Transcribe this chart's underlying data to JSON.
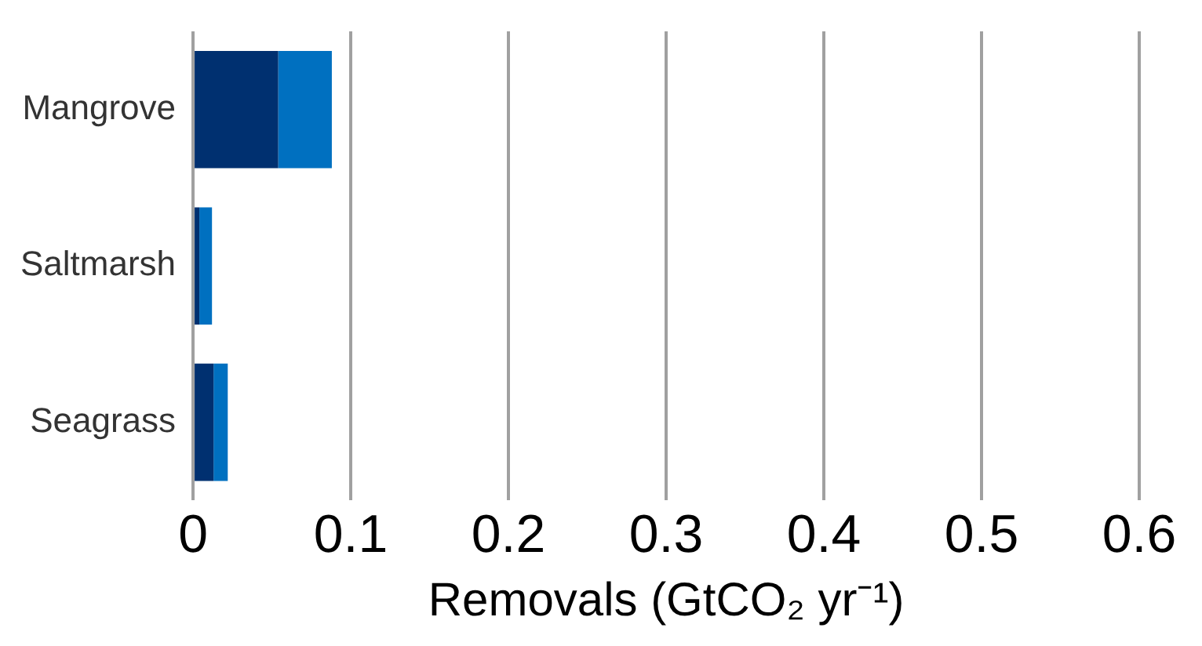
{
  "chart_data": {
    "type": "bar",
    "orientation": "horizontal",
    "stacked": true,
    "xlabel": "Removals (GtCO₂ yr⁻¹)",
    "categories": [
      "Mangrove",
      "Saltmarsh",
      "Seagrass"
    ],
    "series": [
      {
        "color": "#003070",
        "values": [
          0.054,
          0.004,
          0.013
        ]
      },
      {
        "color": "#0070c0",
        "values": [
          0.034,
          0.008,
          0.009
        ]
      }
    ],
    "xlim": [
      0,
      0.6
    ],
    "xticks": [
      0,
      0.1,
      0.2,
      0.3,
      0.4,
      0.5,
      0.6
    ],
    "grid": "x",
    "legend": false
  }
}
